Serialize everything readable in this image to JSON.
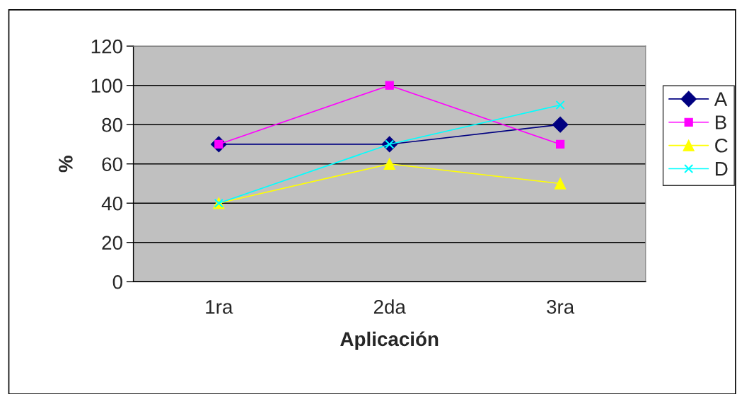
{
  "chart_data": {
    "type": "line",
    "xlabel": "Aplicación",
    "ylabel": "%",
    "categories": [
      "1ra",
      "2da",
      "3ra"
    ],
    "series": [
      {
        "name": "A",
        "color": "#000080",
        "marker": "diamond",
        "values": [
          70,
          70,
          80
        ]
      },
      {
        "name": "B",
        "color": "#ff00ff",
        "marker": "square",
        "values": [
          70,
          100,
          70
        ]
      },
      {
        "name": "C",
        "color": "#ffff00",
        "marker": "triangle",
        "values": [
          40,
          60,
          50
        ]
      },
      {
        "name": "D",
        "color": "#00ffff",
        "marker": "cross",
        "values": [
          40,
          70,
          90
        ]
      }
    ],
    "ylim": [
      0,
      120
    ],
    "yticks": [
      0,
      20,
      40,
      60,
      80,
      100,
      120
    ],
    "grid": "y",
    "legend": "right"
  }
}
